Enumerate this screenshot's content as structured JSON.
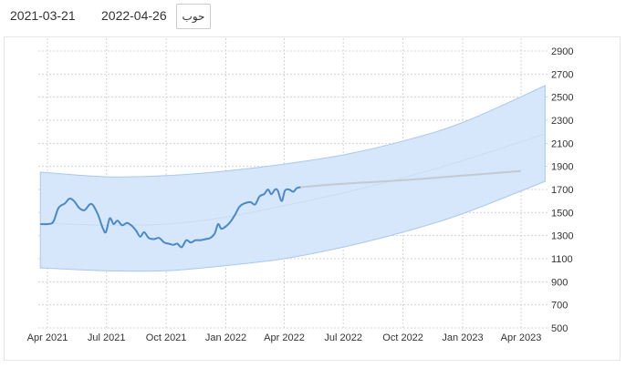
{
  "controls": {
    "from_date": "2021-03-21",
    "to_date": "2022-04-26",
    "go_label": "حوب"
  },
  "colors": {
    "band_fill": "#d6e6fb",
    "band_stroke": "#aac8ef",
    "price_line": "#4a89c8",
    "forecast_line": "#c3cad3",
    "trend_line": "#c9dcf2",
    "grid": "#d4d4d4"
  },
  "chart_data": {
    "type": "line",
    "title": "",
    "xlabel": "",
    "ylabel": "",
    "ylim": [
      500,
      2900
    ],
    "y_ticks": [
      500,
      700,
      900,
      1100,
      1300,
      1500,
      1700,
      1900,
      2100,
      2300,
      2500,
      2700,
      2900
    ],
    "x_range_months": [
      "2021-03-21",
      "2023-05-08"
    ],
    "x_ticks": [
      {
        "date": "2021-04-01",
        "label": "Apr 2021"
      },
      {
        "date": "2021-07-01",
        "label": "Jul 2021"
      },
      {
        "date": "2021-10-01",
        "label": "Oct 2021"
      },
      {
        "date": "2022-01-01",
        "label": "Jan 2022"
      },
      {
        "date": "2022-04-01",
        "label": "Apr 2022"
      },
      {
        "date": "2022-07-01",
        "label": "Jul 2022"
      },
      {
        "date": "2022-10-01",
        "label": "Oct 2022"
      },
      {
        "date": "2023-01-01",
        "label": "Jan 2023"
      },
      {
        "date": "2023-04-01",
        "label": "Apr 2023"
      }
    ],
    "grid": true,
    "series": [
      {
        "key": "price",
        "points": [
          [
            "2021-03-21",
            1400
          ],
          [
            "2021-04-01",
            1400
          ],
          [
            "2021-04-10",
            1420
          ],
          [
            "2021-04-18",
            1540
          ],
          [
            "2021-04-28",
            1580
          ],
          [
            "2021-05-05",
            1620
          ],
          [
            "2021-05-12",
            1600
          ],
          [
            "2021-05-20",
            1540
          ],
          [
            "2021-05-28",
            1520
          ],
          [
            "2021-06-05",
            1570
          ],
          [
            "2021-06-10",
            1565
          ],
          [
            "2021-06-18",
            1480
          ],
          [
            "2021-06-25",
            1370
          ],
          [
            "2021-06-30",
            1330
          ],
          [
            "2021-07-06",
            1450
          ],
          [
            "2021-07-12",
            1400
          ],
          [
            "2021-07-18",
            1430
          ],
          [
            "2021-07-25",
            1390
          ],
          [
            "2021-08-02",
            1410
          ],
          [
            "2021-08-10",
            1380
          ],
          [
            "2021-08-16",
            1340
          ],
          [
            "2021-08-22",
            1290
          ],
          [
            "2021-08-28",
            1330
          ],
          [
            "2021-09-04",
            1280
          ],
          [
            "2021-09-12",
            1270
          ],
          [
            "2021-09-20",
            1280
          ],
          [
            "2021-09-28",
            1240
          ],
          [
            "2021-10-05",
            1230
          ],
          [
            "2021-10-12",
            1220
          ],
          [
            "2021-10-18",
            1230
          ],
          [
            "2021-10-25",
            1200
          ],
          [
            "2021-11-01",
            1260
          ],
          [
            "2021-11-08",
            1240
          ],
          [
            "2021-11-15",
            1260
          ],
          [
            "2021-11-22",
            1260
          ],
          [
            "2021-12-01",
            1270
          ],
          [
            "2021-12-08",
            1280
          ],
          [
            "2021-12-15",
            1320
          ],
          [
            "2021-12-20",
            1400
          ],
          [
            "2021-12-25",
            1360
          ],
          [
            "2022-01-01",
            1380
          ],
          [
            "2022-01-08",
            1420
          ],
          [
            "2022-01-15",
            1480
          ],
          [
            "2022-01-22",
            1550
          ],
          [
            "2022-01-30",
            1580
          ],
          [
            "2022-02-08",
            1590
          ],
          [
            "2022-02-15",
            1570
          ],
          [
            "2022-02-22",
            1640
          ],
          [
            "2022-03-01",
            1660
          ],
          [
            "2022-03-07",
            1700
          ],
          [
            "2022-03-12",
            1660
          ],
          [
            "2022-03-18",
            1700
          ],
          [
            "2022-03-22",
            1690
          ],
          [
            "2022-03-28",
            1600
          ],
          [
            "2022-04-02",
            1690
          ],
          [
            "2022-04-08",
            1700
          ],
          [
            "2022-04-15",
            1680
          ],
          [
            "2022-04-20",
            1710
          ],
          [
            "2022-04-26",
            1720
          ]
        ]
      },
      {
        "key": "forecast",
        "points": [
          [
            "2022-04-26",
            1720
          ],
          [
            "2022-07-01",
            1750
          ],
          [
            "2022-10-01",
            1780
          ],
          [
            "2023-01-01",
            1820
          ],
          [
            "2023-04-01",
            1860
          ]
        ]
      },
      {
        "key": "trend",
        "points": [
          [
            "2021-03-21",
            1410
          ],
          [
            "2021-07-01",
            1390
          ],
          [
            "2021-10-01",
            1400
          ],
          [
            "2022-01-01",
            1460
          ],
          [
            "2022-04-01",
            1560
          ],
          [
            "2022-07-01",
            1670
          ],
          [
            "2022-10-01",
            1800
          ],
          [
            "2023-01-01",
            1950
          ],
          [
            "2023-05-08",
            2180
          ]
        ]
      }
    ],
    "band": {
      "upper": [
        [
          "2021-03-21",
          1850
        ],
        [
          "2021-07-01",
          1810
        ],
        [
          "2021-10-01",
          1820
        ],
        [
          "2022-01-01",
          1860
        ],
        [
          "2022-04-01",
          1920
        ],
        [
          "2022-07-01",
          2000
        ],
        [
          "2022-10-01",
          2120
        ],
        [
          "2023-01-01",
          2280
        ],
        [
          "2023-05-08",
          2600
        ]
      ],
      "lower": [
        [
          "2021-03-21",
          1020
        ],
        [
          "2021-07-01",
          995
        ],
        [
          "2021-10-01",
          995
        ],
        [
          "2022-01-01",
          1040
        ],
        [
          "2022-04-01",
          1100
        ],
        [
          "2022-07-01",
          1200
        ],
        [
          "2022-10-01",
          1330
        ],
        [
          "2023-01-01",
          1490
        ],
        [
          "2023-05-08",
          1770
        ]
      ]
    }
  }
}
